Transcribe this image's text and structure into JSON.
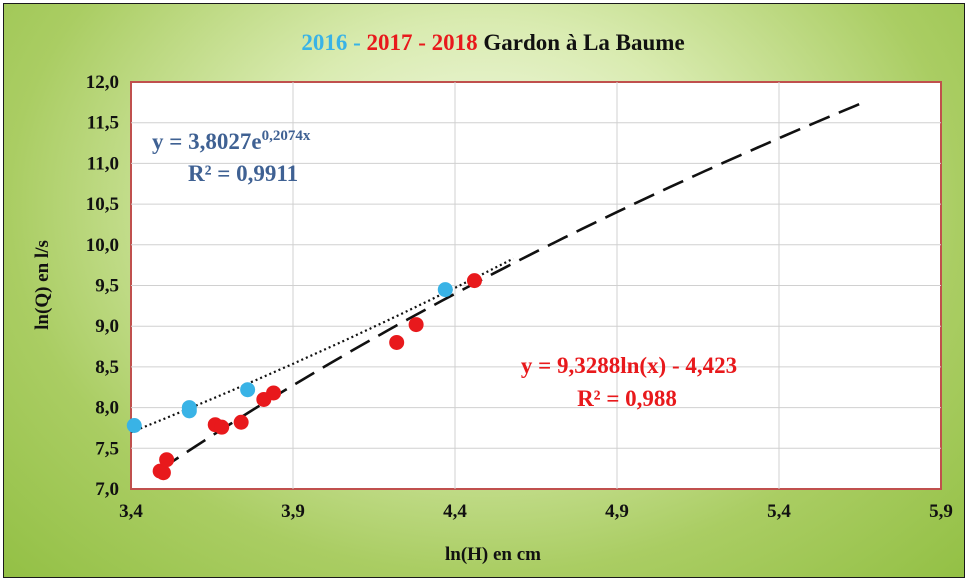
{
  "chart_data": {
    "type": "scatter",
    "title_parts": [
      {
        "text": "2016",
        "color": "#39b3e6"
      },
      {
        "text": " - ",
        "color": "#39b3e6"
      },
      {
        "text": "2017",
        "color": "#e8191c"
      },
      {
        "text": " - ",
        "color": "#e8191c"
      },
      {
        "text": "2018",
        "color": "#e8191c"
      },
      {
        "text": " Gardon à La Baume",
        "color": "#111111"
      }
    ],
    "xlabel": "ln(H) en cm",
    "ylabel": "ln(Q) en l/s",
    "xlim": [
      3.4,
      5.9
    ],
    "ylim": [
      7.0,
      12.0
    ],
    "x_ticks": [
      "3,4",
      "3,9",
      "4,4",
      "4,9",
      "5,4",
      "5,9"
    ],
    "y_ticks": [
      "7,0",
      "7,5",
      "8,0",
      "8,5",
      "9,0",
      "9,5",
      "10,0",
      "10,5",
      "11,0",
      "11,5",
      "12,0"
    ],
    "grid": true,
    "series": [
      {
        "color": "#39b3e6",
        "points": [
          [
            3.41,
            7.78
          ],
          [
            3.58,
            7.96
          ],
          [
            3.58,
            8.0
          ],
          [
            3.76,
            8.22
          ],
          [
            4.37,
            9.45
          ]
        ]
      },
      {
        "color": "#e8191c",
        "points": [
          [
            3.49,
            7.22
          ],
          [
            3.5,
            7.2
          ],
          [
            3.51,
            7.36
          ],
          [
            3.66,
            7.79
          ],
          [
            3.68,
            7.76
          ],
          [
            3.74,
            7.82
          ],
          [
            3.81,
            8.1
          ],
          [
            3.84,
            8.18
          ],
          [
            4.22,
            8.8
          ],
          [
            4.28,
            9.02
          ],
          [
            4.46,
            9.56
          ]
        ]
      }
    ],
    "trendlines": [
      {
        "kind": "exponential",
        "style": "dotted",
        "color": "#111111",
        "a": 3.8027,
        "b": 0.2074,
        "x_range": [
          3.4,
          4.58
        ],
        "equation": "y = 3,8027e",
        "exponent": "0,2074x",
        "r2": "R² = 0,9911",
        "label_color": "#3f6193"
      },
      {
        "kind": "logarithmic",
        "style": "dashed",
        "color": "#111111",
        "a": 9.3288,
        "b": -4.423,
        "x_range": [
          3.49,
          5.66
        ],
        "equation": "y = 9,3288ln(x) - 4,423",
        "r2": "R² = 0,988",
        "label_color": "#e8191c"
      }
    ]
  }
}
